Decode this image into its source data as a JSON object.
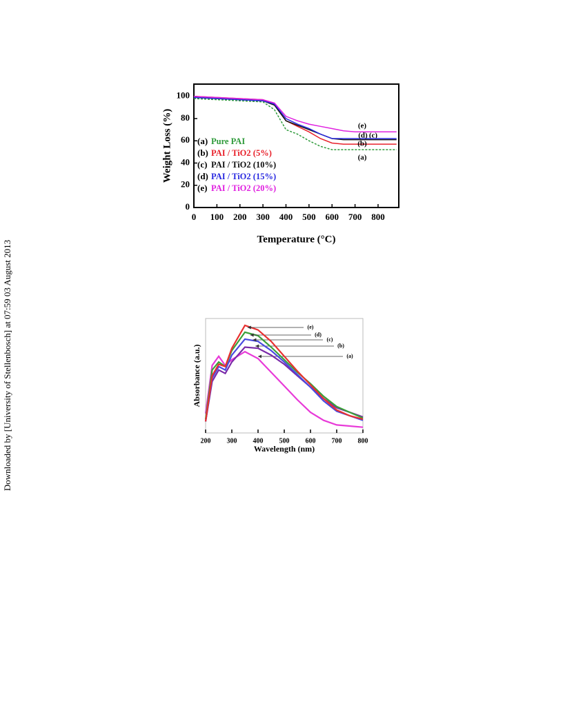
{
  "sidebar": "Downloaded by [University of Stellenbosch] at 07:59 03 August 2013",
  "chart_data": [
    {
      "type": "line",
      "xlabel": "Temperature (°C)",
      "ylabel": "Weight Loss (%)",
      "xlim": [
        0,
        890
      ],
      "xticks": [
        0,
        100,
        200,
        300,
        400,
        500,
        600,
        700,
        800
      ],
      "ylim": [
        0,
        111
      ],
      "yticks": [
        0,
        20,
        40,
        60,
        80,
        100
      ],
      "x": [
        0,
        100,
        200,
        300,
        350,
        400,
        450,
        500,
        550,
        600,
        650,
        700,
        800,
        880
      ],
      "series": [
        {
          "label": "(a)",
          "name": "Pure PAI",
          "color": "#2e9a3a",
          "values": [
            98,
            97,
            96,
            95,
            88,
            70,
            66,
            60,
            55,
            52,
            52,
            52,
            52,
            52
          ]
        },
        {
          "label": "(b)",
          "name": "PAI / TiO2 (5%)",
          "color": "#e8202a",
          "values": [
            100,
            99,
            98,
            97,
            93,
            78,
            73,
            68,
            62,
            58,
            57,
            57,
            57,
            57
          ]
        },
        {
          "label": "(c)",
          "name": "PAI / TiO2 (10%)",
          "color": "#111111",
          "values": [
            99,
            98,
            97,
            96,
            92,
            78,
            74,
            70,
            66,
            62,
            61,
            61,
            61,
            61
          ]
        },
        {
          "label": "(d)",
          "name": "PAI / TiO2 (15%)",
          "color": "#2a2ae0",
          "values": [
            99,
            98,
            97,
            96,
            93,
            80,
            75,
            71,
            66,
            62,
            62,
            62,
            62,
            62
          ]
        },
        {
          "label": "(e)",
          "name": "PAI / TiO2 (20%)",
          "color": "#e020e0",
          "values": [
            100,
            99,
            98,
            97,
            94,
            82,
            78,
            75,
            73,
            71,
            69,
            68,
            68,
            68
          ]
        }
      ]
    },
    {
      "type": "line",
      "xlabel": "Wavelength (nm)",
      "ylabel": "Absorbance (a.u.)",
      "xlim": [
        200,
        800
      ],
      "xticks": [
        200,
        300,
        400,
        500,
        600,
        700,
        800
      ],
      "ylim": [
        0,
        100
      ],
      "x": [
        200,
        225,
        250,
        275,
        300,
        350,
        400,
        450,
        500,
        550,
        600,
        650,
        700,
        750,
        800
      ],
      "series": [
        {
          "label": "(a)",
          "color": "#e83ad8",
          "values": [
            17,
            59,
            67,
            59,
            64,
            71,
            65,
            53,
            41,
            29,
            18,
            11,
            7,
            6,
            5
          ]
        },
        {
          "label": "(b)",
          "color": "#7a2aa8",
          "values": [
            10,
            45,
            55,
            52,
            62,
            75,
            74,
            68,
            60,
            50,
            40,
            30,
            22,
            18,
            14
          ]
        },
        {
          "label": "(c)",
          "color": "#4a4ae0",
          "values": [
            10,
            48,
            58,
            55,
            68,
            82,
            80,
            72,
            62,
            51,
            40,
            28,
            19,
            15,
            11
          ]
        },
        {
          "label": "(d)",
          "color": "#3aa03a",
          "values": [
            12,
            55,
            62,
            58,
            72,
            88,
            85,
            75,
            64,
            53,
            43,
            32,
            23,
            18,
            13
          ]
        },
        {
          "label": "(e)",
          "color": "#e83030",
          "values": [
            10,
            50,
            60,
            58,
            74,
            94,
            90,
            80,
            67,
            54,
            42,
            30,
            20,
            15,
            12
          ]
        }
      ]
    }
  ]
}
